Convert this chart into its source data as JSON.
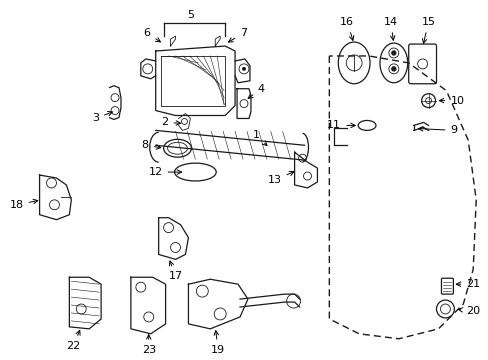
{
  "background_color": "#ffffff",
  "figsize": [
    4.89,
    3.6
  ],
  "dpi": 100,
  "line_color": "#1a1a1a"
}
